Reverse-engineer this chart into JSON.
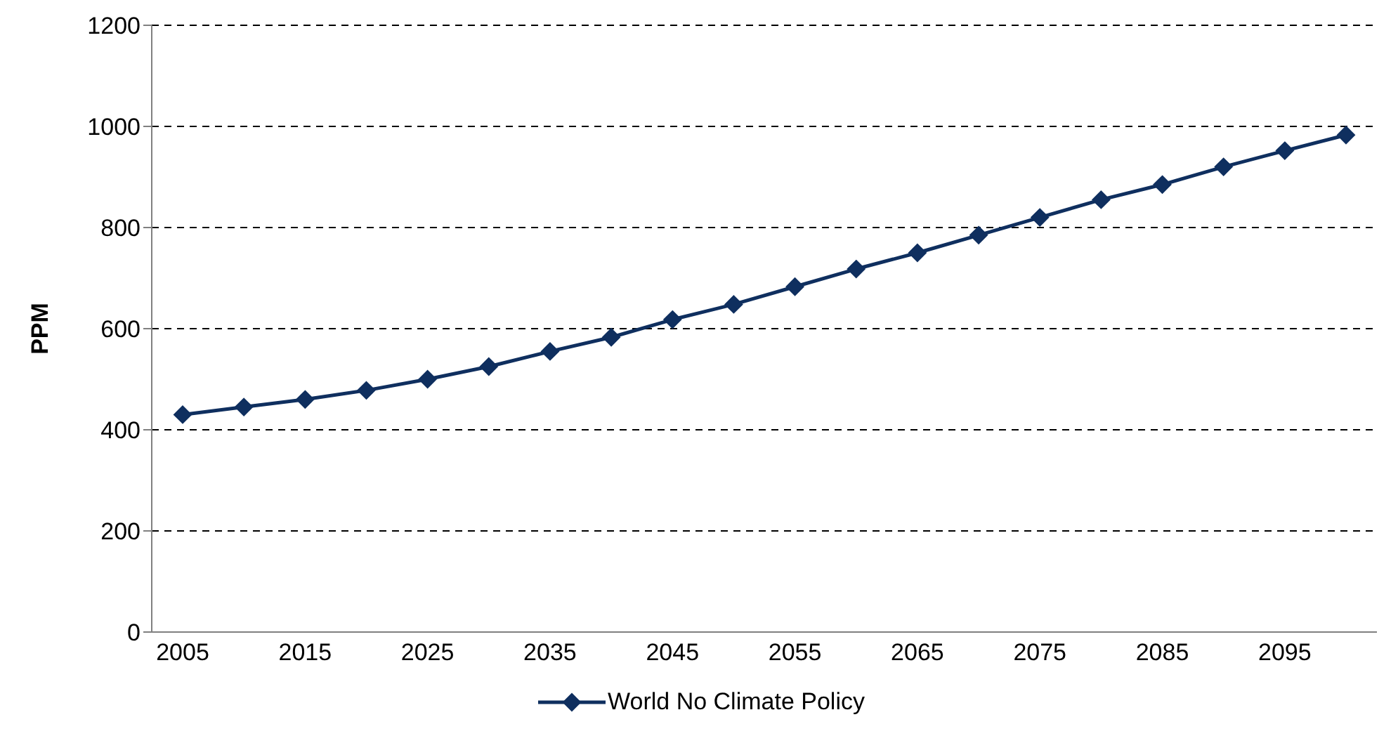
{
  "chart_data": {
    "type": "line",
    "ylabel": "PPM",
    "categories": [
      "2005",
      null,
      "2015",
      null,
      "2025",
      null,
      "2035",
      null,
      "2045",
      null,
      "2055",
      null,
      "2065",
      null,
      "2075",
      null,
      "2085",
      null,
      "2095",
      null
    ],
    "series": [
      {
        "name": "World No Climate Policy",
        "color": "#0f2f5f",
        "values": [
          430,
          445,
          460,
          478,
          500,
          525,
          555,
          583,
          618,
          648,
          683,
          718,
          750,
          785,
          820,
          855,
          885,
          920,
          952,
          983
        ]
      }
    ],
    "ylim": [
      0,
      1200
    ],
    "yticks": [
      0,
      200,
      400,
      600,
      800,
      1000,
      1200
    ],
    "grid": "y",
    "legend": "bottom",
    "marker": "diamond",
    "line_style": "solid"
  }
}
